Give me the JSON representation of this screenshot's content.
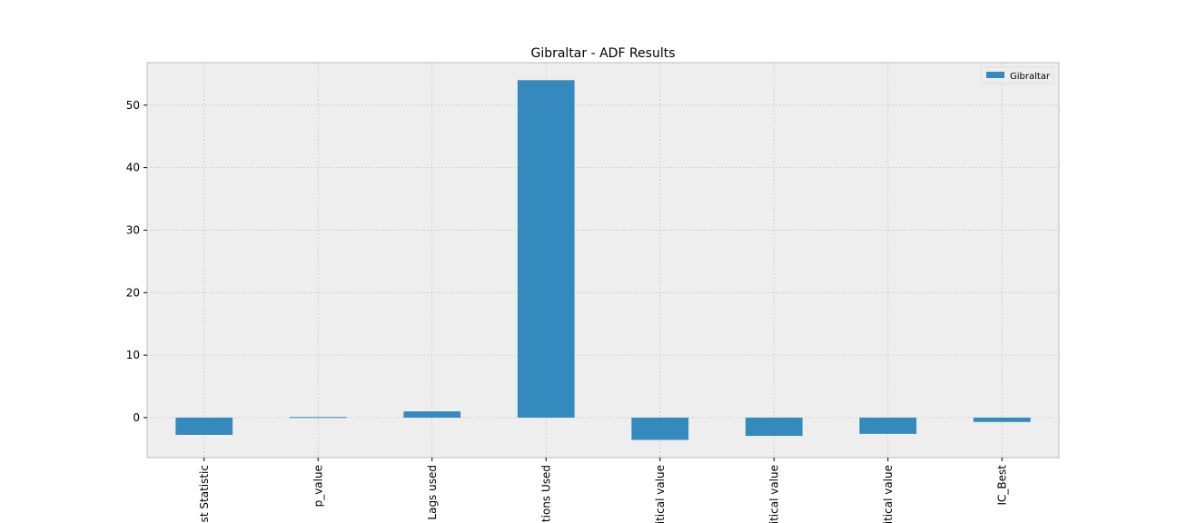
{
  "chart_data": {
    "type": "bar",
    "title": "Gibraltar - ADF Results",
    "categories": [
      "est Statistic",
      "p_value",
      "Lags used",
      "ations Used",
      "ritical value",
      "ritical value",
      "ritical value",
      "IC_Best"
    ],
    "series": [
      {
        "name": "Gibraltar",
        "color": "#348abd",
        "values": [
          -2.76,
          0.1,
          1,
          54,
          -3.56,
          -2.92,
          -2.6,
          -0.7
        ]
      }
    ],
    "ylim": [
      -6.4,
      56.8
    ],
    "yticks": [
      0,
      10,
      20,
      30,
      40,
      50
    ],
    "grid": true,
    "legend": "upper right"
  }
}
